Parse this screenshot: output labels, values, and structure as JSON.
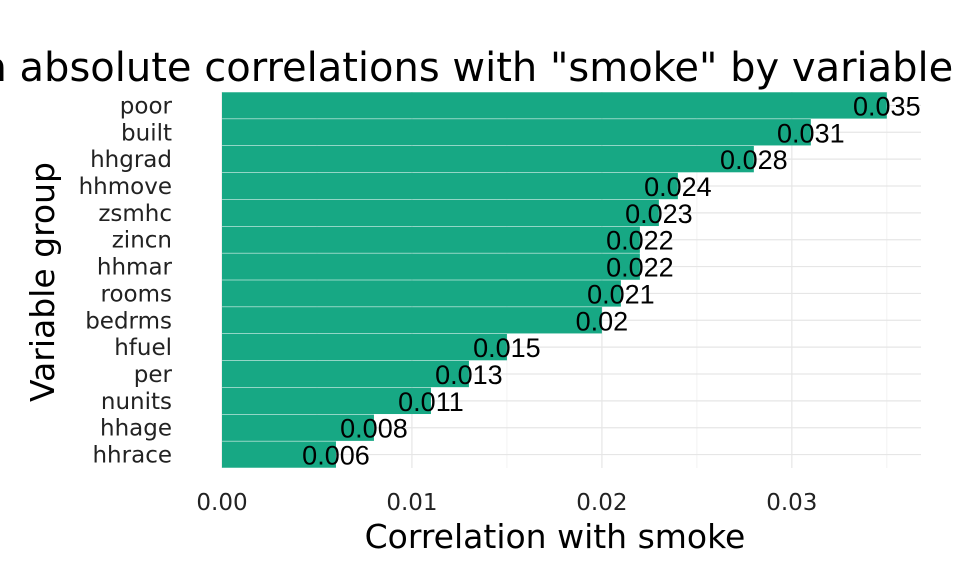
{
  "chart_data": {
    "type": "bar",
    "orientation": "horizontal",
    "title": "Mean absolute correlations with \"smoke\" by variable group",
    "xlabel": "Correlation with smoke",
    "ylabel": "Variable group",
    "categories": [
      "poor",
      "built",
      "hhgrad",
      "hhmove",
      "zsmhc",
      "zincn",
      "hhmar",
      "rooms",
      "bedrms",
      "hfuel",
      "per",
      "nunits",
      "hhage",
      "hhrace"
    ],
    "values": [
      0.035,
      0.031,
      0.028,
      0.024,
      0.023,
      0.022,
      0.022,
      0.021,
      0.02,
      0.015,
      0.013,
      0.011,
      0.008,
      0.006
    ],
    "data_labels": [
      "0.035",
      "0.031",
      "0.028",
      "0.024",
      "0.023",
      "0.022",
      "0.022",
      "0.021",
      "0.02",
      "0.015",
      "0.013",
      "0.011",
      "0.008",
      "0.006"
    ],
    "xticks": [
      0,
      0.01,
      0.02,
      0.03
    ],
    "xtick_labels": [
      "0.00",
      "0.01",
      "0.02",
      "0.03"
    ],
    "xlim": [
      0,
      0.0368
    ],
    "grid": true,
    "legend": "none",
    "bar_color": "#17a884"
  }
}
